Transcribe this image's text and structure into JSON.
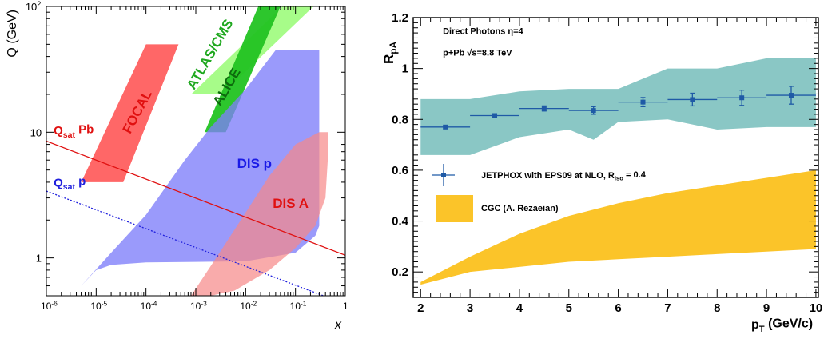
{
  "chart_data": [
    {
      "type": "area",
      "title": "",
      "xlabel": "x",
      "ylabel": "Q (GeV)",
      "x_scale": "log",
      "y_scale": "log",
      "xlim": [
        1e-06,
        1
      ],
      "ylim": [
        0.5,
        100
      ],
      "grid": false,
      "x_ticks": [
        {
          "v": 1e-06,
          "b": "10",
          "e": "-6"
        },
        {
          "v": 1e-05,
          "b": "10",
          "e": "-5"
        },
        {
          "v": 0.0001,
          "b": "10",
          "e": "-4"
        },
        {
          "v": 0.001,
          "b": "10",
          "e": "-3"
        },
        {
          "v": 0.01,
          "b": "10",
          "e": "-2"
        },
        {
          "v": 0.1,
          "b": "10",
          "e": "-1"
        },
        {
          "v": 1,
          "b": "1",
          "e": ""
        }
      ],
      "y_ticks": [
        {
          "v": 1,
          "b": "1",
          "e": ""
        },
        {
          "v": 10,
          "b": "10",
          "e": ""
        },
        {
          "v": 100,
          "b": "10",
          "e": "2"
        }
      ],
      "regions": [
        {
          "label": "FOCAL",
          "color": "#ff5a5a",
          "opacity": 0.92,
          "text_color": "#e01010",
          "label_x": 8e-05,
          "label_y": 14,
          "label_angle": -62,
          "points": [
            [
              5e-06,
              4
            ],
            [
              3.5e-05,
              4
            ],
            [
              0.00045,
              50
            ],
            [
              0.0001,
              50
            ]
          ]
        },
        {
          "label": "ATLAS/CMS",
          "color": "#9dfc7c",
          "opacity": 0.9,
          "text_color": "#1fa81f",
          "label_x": 0.0023,
          "label_y": 40,
          "label_angle": -60,
          "points": [
            [
              0.0008,
              20
            ],
            [
              0.0033,
              20
            ],
            [
              0.23,
              100
            ],
            [
              0.055,
              100
            ]
          ]
        },
        {
          "label": "ALICE",
          "color": "#22c322",
          "opacity": 0.95,
          "text_color": "#0d6b0d",
          "label_x": 0.005,
          "label_y": 22,
          "label_angle": -60,
          "points": [
            [
              0.0015,
              10
            ],
            [
              0.004,
              10
            ],
            [
              0.05,
              100
            ],
            [
              0.018,
              100
            ]
          ]
        },
        {
          "label": "DIS p",
          "color": "#7d7dfa",
          "opacity": 0.78,
          "text_color": "#1a1ae6",
          "label_x": 0.015,
          "label_y": 5.2,
          "label_angle": 0,
          "points": [
            [
              5e-06,
              0.6
            ],
            [
              1e-05,
              0.8
            ],
            [
              2e-05,
              0.88
            ],
            [
              0.0001,
              0.92
            ],
            [
              0.001,
              0.93
            ],
            [
              0.01,
              0.94
            ],
            [
              0.1,
              1.1
            ],
            [
              0.25,
              1.5
            ],
            [
              0.3,
              1.8
            ],
            [
              0.3,
              45
            ],
            [
              0.04,
              45
            ],
            [
              0.01,
              22
            ],
            [
              0.002,
              11
            ],
            [
              0.0006,
              6
            ],
            [
              0.0001,
              2.2
            ],
            [
              2e-05,
              1.1
            ]
          ]
        },
        {
          "label": "DIS A",
          "color": "#f78888",
          "opacity": 0.7,
          "text_color": "#e01010",
          "label_x": 0.08,
          "label_y": 2.5,
          "label_angle": 0,
          "points": [
            [
              0.0008,
              0.5
            ],
            [
              0.002,
              0.5
            ],
            [
              0.006,
              0.55
            ],
            [
              0.03,
              0.8
            ],
            [
              0.1,
              1.2
            ],
            [
              0.25,
              1.8
            ],
            [
              0.4,
              3.0
            ],
            [
              0.45,
              6.5
            ],
            [
              0.45,
              10
            ],
            [
              0.3,
              10
            ],
            [
              0.1,
              8
            ],
            [
              0.03,
              4.5
            ],
            [
              0.008,
              2.0
            ],
            [
              0.003,
              1.1
            ]
          ]
        }
      ],
      "lines": [
        {
          "label": "Q",
          "sub": "sat",
          "suffix": "Pb",
          "color": "#e01010",
          "style": "solid",
          "label_x": 1.4e-06,
          "label_y": 9.6,
          "points": [
            [
              1e-06,
              8.5
            ],
            [
              1,
              1.05
            ]
          ]
        },
        {
          "label": "Q",
          "sub": "sat",
          "suffix": "p",
          "color": "#2020dd",
          "style": "dotted",
          "label_x": 1.4e-06,
          "label_y": 3.7,
          "points": [
            [
              1e-06,
              3.4
            ],
            [
              1,
              0.43
            ]
          ]
        }
      ]
    },
    {
      "type": "line",
      "title": "",
      "xlabel": "p",
      "xlabel_sub": "T",
      "xlabel_suffix": " (GeV/c)",
      "ylabel": "R",
      "ylabel_sub": "pA",
      "xlim": [
        1.85,
        10.05
      ],
      "ylim": [
        0.1,
        1.2
      ],
      "grid": false,
      "x_ticks": [
        2,
        3,
        4,
        5,
        6,
        7,
        8,
        9,
        10
      ],
      "y_ticks": [
        0.2,
        0.4,
        0.6,
        0.8,
        1,
        1.2
      ],
      "annotations": [
        {
          "text": "Direct Photons η=4",
          "x": 2.45,
          "y": 1.135
        },
        {
          "text": "p+Pb  √s=8.8 TeV",
          "x": 2.45,
          "y": 1.05
        }
      ],
      "bands": [
        {
          "name": "JETPHOX with EPS09 at NLO, R_iso = 0.4",
          "color": "#8ac7c5",
          "x": [
            2,
            3,
            4,
            5,
            5.5,
            6,
            7,
            8,
            9,
            10
          ],
          "upper": [
            0.88,
            0.88,
            0.91,
            0.92,
            0.92,
            0.92,
            1.0,
            1.0,
            1.04,
            1.04
          ],
          "lower": [
            0.66,
            0.66,
            0.73,
            0.76,
            0.72,
            0.79,
            0.8,
            0.76,
            0.77,
            0.77
          ]
        },
        {
          "name": "CGC (A. Rezaeian)",
          "color": "#fbc429",
          "x": [
            2,
            3,
            4,
            5,
            6,
            7,
            8,
            9,
            10
          ],
          "upper": [
            0.16,
            0.26,
            0.35,
            0.42,
            0.47,
            0.51,
            0.54,
            0.57,
            0.6
          ],
          "lower": [
            0.15,
            0.2,
            0.22,
            0.24,
            0.25,
            0.26,
            0.27,
            0.28,
            0.29
          ]
        }
      ],
      "series": [
        {
          "name": "JETPHOX with EPS09 at NLO, R_iso = 0.4",
          "color": "#1f5aa6",
          "points": [
            {
              "x": 2.5,
              "y": 0.77,
              "xerr": 0.5,
              "yerr": 0.0
            },
            {
              "x": 3.5,
              "y": 0.815,
              "xerr": 0.5,
              "yerr": 0.005
            },
            {
              "x": 4.5,
              "y": 0.843,
              "xerr": 0.5,
              "yerr": 0.01
            },
            {
              "x": 5.5,
              "y": 0.835,
              "xerr": 0.5,
              "yerr": 0.015
            },
            {
              "x": 6.5,
              "y": 0.868,
              "xerr": 0.5,
              "yerr": 0.018
            },
            {
              "x": 7.5,
              "y": 0.878,
              "xerr": 0.5,
              "yerr": 0.025
            },
            {
              "x": 8.5,
              "y": 0.885,
              "xerr": 0.5,
              "yerr": 0.03
            },
            {
              "x": 9.5,
              "y": 0.895,
              "xerr": 0.5,
              "yerr": 0.035
            }
          ]
        }
      ],
      "legend": {
        "placement": "middle-left",
        "entries": [
          {
            "kind": "marker",
            "color": "#1f5aa6",
            "text": "JETPHOX with EPS09 at NLO, R",
            "sub": "iso",
            "suffix": " = 0.4"
          },
          {
            "kind": "box",
            "color": "#fbc429",
            "text": "CGC (A. Rezaeian)",
            "sub": "",
            "suffix": ""
          }
        ]
      }
    }
  ]
}
